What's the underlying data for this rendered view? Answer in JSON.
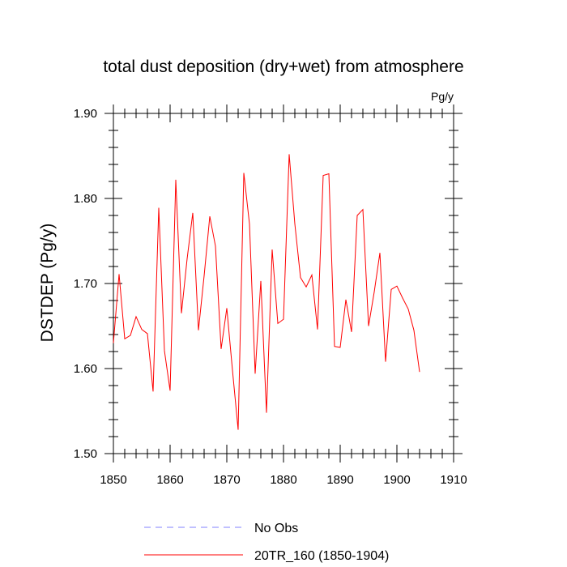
{
  "chart_data": {
    "type": "line",
    "title": "total dust deposition (dry+wet) from atmosphere",
    "units": "Pg/y",
    "ylabel": "DSTDEP  (Pg/y)",
    "xlabel": "",
    "xlim": [
      1850,
      1910
    ],
    "ylim": [
      1.5,
      1.9
    ],
    "xticks": [
      "1850",
      "1860",
      "1870",
      "1880",
      "1890",
      "1900",
      "1910"
    ],
    "yticks": [
      "1.50",
      "1.60",
      "1.70",
      "1.80",
      "1.90"
    ],
    "grid": false,
    "legend_position": "bottom",
    "series": [
      {
        "name": "No Obs",
        "color": "#8080ff",
        "dash": "dashed",
        "x": [],
        "values": []
      },
      {
        "name": "20TR_160 (1850-1904)",
        "color": "#ff0000",
        "dash": "solid",
        "x": [
          1850,
          1851,
          1852,
          1853,
          1854,
          1855,
          1856,
          1857,
          1858,
          1859,
          1860,
          1861,
          1862,
          1863,
          1864,
          1865,
          1866,
          1867,
          1868,
          1869,
          1870,
          1871,
          1872,
          1873,
          1874,
          1875,
          1876,
          1877,
          1878,
          1879,
          1880,
          1881,
          1882,
          1883,
          1884,
          1885,
          1886,
          1887,
          1888,
          1889,
          1890,
          1891,
          1892,
          1893,
          1894,
          1895,
          1896,
          1897,
          1898,
          1899,
          1900,
          1901,
          1902,
          1903,
          1904
        ],
        "values": [
          1.63,
          1.711,
          1.635,
          1.639,
          1.661,
          1.646,
          1.641,
          1.573,
          1.789,
          1.621,
          1.574,
          1.822,
          1.665,
          1.729,
          1.783,
          1.645,
          1.709,
          1.779,
          1.744,
          1.623,
          1.671,
          1.598,
          1.528,
          1.83,
          1.77,
          1.594,
          1.703,
          1.548,
          1.74,
          1.653,
          1.658,
          1.852,
          1.77,
          1.707,
          1.696,
          1.71,
          1.646,
          1.827,
          1.829,
          1.626,
          1.625,
          1.681,
          1.643,
          1.78,
          1.787,
          1.65,
          1.69,
          1.736,
          1.608,
          1.693,
          1.697,
          1.683,
          1.67,
          1.645,
          1.596
        ]
      }
    ]
  }
}
